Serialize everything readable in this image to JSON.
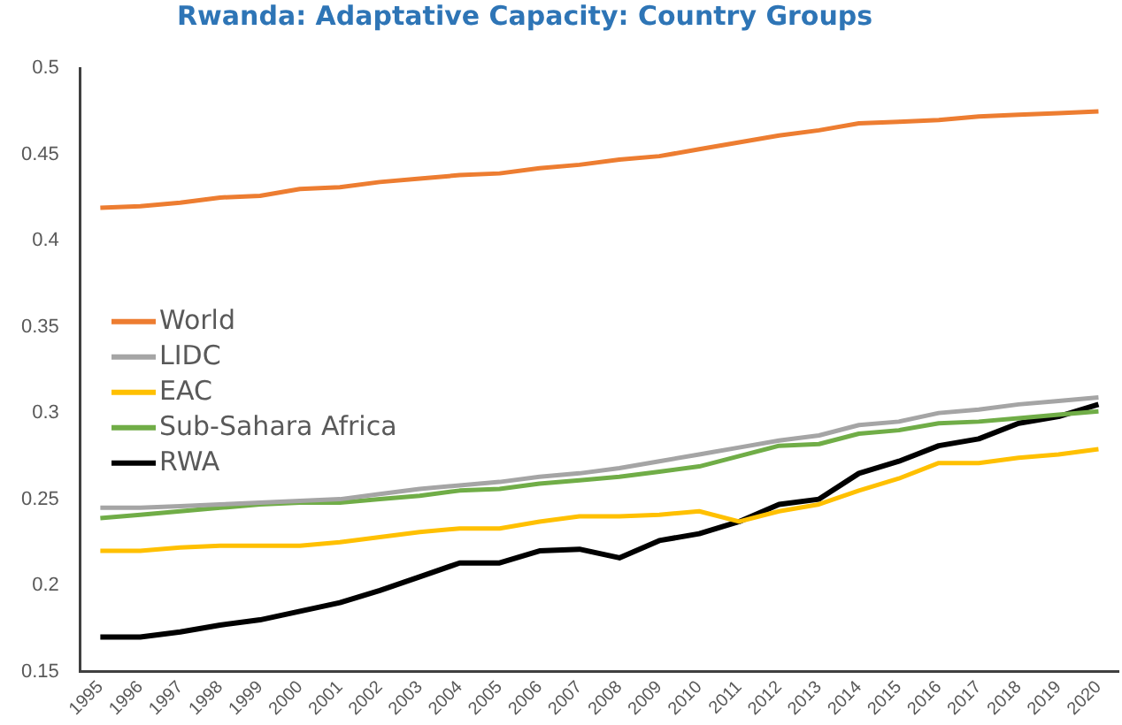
{
  "chart_data": {
    "type": "line",
    "title": "Rwanda: Adaptative Capacity: Country Groups",
    "categories": [
      "1995",
      "1996",
      "1997",
      "1998",
      "1999",
      "2000",
      "2001",
      "2002",
      "2003",
      "2004",
      "2005",
      "2006",
      "2007",
      "2008",
      "2009",
      "2010",
      "2011",
      "2012",
      "2013",
      "2014",
      "2015",
      "2016",
      "2017",
      "2018",
      "2019",
      "2020"
    ],
    "series": [
      {
        "name": "World",
        "color": "#ed7d31",
        "values": [
          0.419,
          0.42,
          0.422,
          0.425,
          0.426,
          0.43,
          0.431,
          0.434,
          0.436,
          0.438,
          0.439,
          0.442,
          0.444,
          0.447,
          0.449,
          0.453,
          0.457,
          0.461,
          0.464,
          0.468,
          0.469,
          0.47,
          0.472,
          0.473,
          0.474,
          0.475
        ]
      },
      {
        "name": "LIDC",
        "color": "#a5a5a5",
        "values": [
          0.245,
          0.245,
          0.246,
          0.247,
          0.248,
          0.249,
          0.25,
          0.253,
          0.256,
          0.258,
          0.26,
          0.263,
          0.265,
          0.268,
          0.272,
          0.276,
          0.28,
          0.284,
          0.287,
          0.293,
          0.295,
          0.3,
          0.302,
          0.305,
          0.307,
          0.309
        ]
      },
      {
        "name": "EAC",
        "color": "#ffc000",
        "values": [
          0.22,
          0.22,
          0.222,
          0.223,
          0.223,
          0.223,
          0.225,
          0.228,
          0.231,
          0.233,
          0.233,
          0.237,
          0.24,
          0.24,
          0.241,
          0.243,
          0.237,
          0.243,
          0.247,
          0.255,
          0.262,
          0.271,
          0.271,
          0.274,
          0.276,
          0.279
        ]
      },
      {
        "name": "Sub-Sahara Africa",
        "color": "#70ad47",
        "values": [
          0.239,
          0.241,
          0.243,
          0.245,
          0.247,
          0.248,
          0.248,
          0.25,
          0.252,
          0.255,
          0.256,
          0.259,
          0.261,
          0.263,
          0.266,
          0.269,
          0.275,
          0.281,
          0.282,
          0.288,
          0.29,
          0.294,
          0.295,
          0.297,
          0.299,
          0.301
        ]
      },
      {
        "name": "RWA",
        "color": "#000000",
        "values": [
          0.17,
          0.17,
          0.173,
          0.177,
          0.18,
          0.185,
          0.19,
          0.197,
          0.205,
          0.213,
          0.213,
          0.22,
          0.221,
          0.216,
          0.226,
          0.23,
          0.237,
          0.247,
          0.25,
          0.265,
          0.272,
          0.281,
          0.285,
          0.294,
          0.298,
          0.305
        ]
      }
    ],
    "ylim": [
      0.15,
      0.5
    ],
    "yticks": [
      0.15,
      0.2,
      0.25,
      0.3,
      0.35,
      0.4,
      0.45,
      0.5
    ],
    "grid": false,
    "legend": "left",
    "marker": "none",
    "line_style": "solid"
  }
}
